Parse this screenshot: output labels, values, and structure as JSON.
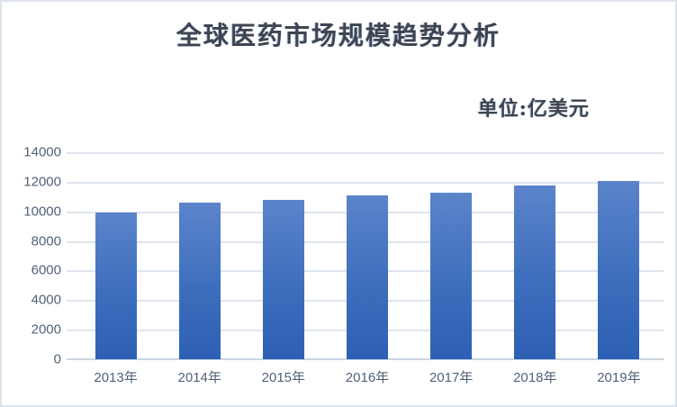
{
  "page": {
    "background_color": "#ffffff",
    "border_color": "#dde3eb"
  },
  "chart_data": {
    "type": "bar",
    "title": "全球医药市场规模趋势分析",
    "subtitle": "单位:亿美元",
    "categories": [
      "2013年",
      "2014年",
      "2015年",
      "2016年",
      "2017年",
      "2018年",
      "2019年"
    ],
    "values": [
      9900,
      10600,
      10750,
      11100,
      11250,
      11750,
      12050
    ],
    "xlabel": "",
    "ylabel": "",
    "ylim": [
      0,
      14000
    ],
    "ytick_interval": 2000,
    "yticks": [
      0,
      2000,
      4000,
      6000,
      8000,
      10000,
      12000,
      14000
    ],
    "grid": true,
    "legend_position": "none",
    "colors": {
      "bar_gradient_top": "#5b84cb",
      "bar_gradient_bottom": "#2d60b4",
      "gridline": "#dfe5ee",
      "axis_line": "#ccd5e0",
      "title_text": "#3e4551",
      "tick_text": "#52617a"
    }
  }
}
